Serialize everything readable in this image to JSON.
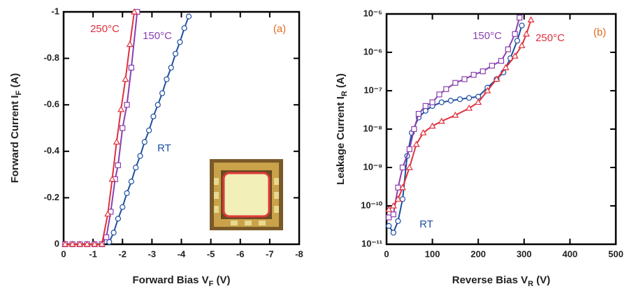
{
  "chart_data": [
    {
      "type": "line",
      "xlabel": [
        "Forward Bias V",
        "F",
        " (V)"
      ],
      "ylabel": [
        "Forward Current I",
        "F",
        " (A)"
      ],
      "xlim": [
        0,
        -8
      ],
      "xticks": [
        0,
        -1,
        -2,
        -3,
        -4,
        -5,
        -6,
        -7,
        -8
      ],
      "ylim": [
        0,
        -1
      ],
      "yticks": [
        0,
        -0.2,
        -0.4,
        -0.6,
        -0.8,
        -1
      ],
      "annotations": [
        {
          "text": "250°C",
          "color": "#e0303c"
        },
        {
          "text": "150°C",
          "color": "#8a3fb0"
        },
        {
          "text": "RT",
          "color": "#1f4fa0"
        },
        {
          "text": "(a)",
          "color": "#e06a20"
        }
      ],
      "series": [
        {
          "name": "RT",
          "color": "#1f4fa0",
          "marker": "circle",
          "x": [
            -1.55,
            -1.7,
            -1.85,
            -2.0,
            -2.15,
            -2.3,
            -2.45,
            -2.6,
            -2.75,
            -2.9,
            -3.05,
            -3.2,
            -3.35,
            -3.5,
            -3.65,
            -3.8,
            -3.95,
            -4.1,
            -4.25
          ],
          "values": [
            -0.01,
            -0.05,
            -0.11,
            -0.16,
            -0.22,
            -0.27,
            -0.33,
            -0.38,
            -0.44,
            -0.49,
            -0.55,
            -0.6,
            -0.65,
            -0.71,
            -0.76,
            -0.82,
            -0.87,
            -0.93,
            -0.98
          ]
        },
        {
          "name": "150°C",
          "color": "#8a3fb0",
          "marker": "square",
          "x": [
            -0.05,
            -0.3,
            -0.55,
            -0.8,
            -1.05,
            -1.3,
            -1.45,
            -1.6,
            -1.75,
            -1.85,
            -2.0,
            -2.15,
            -2.3,
            -2.5
          ],
          "values": [
            0,
            0,
            0,
            0,
            0,
            0,
            -0.03,
            -0.14,
            -0.28,
            -0.34,
            -0.5,
            -0.6,
            -0.76,
            -1.0
          ]
        },
        {
          "name": "250°C",
          "color": "#e0303c",
          "marker": "triangle",
          "x": [
            -0.05,
            -0.3,
            -0.55,
            -0.8,
            -1.05,
            -1.3,
            -1.5,
            -1.65,
            -1.8,
            -1.95,
            -2.1,
            -2.25,
            -2.4
          ],
          "values": [
            0,
            0,
            0,
            0,
            0,
            0,
            -0.13,
            -0.28,
            -0.44,
            -0.58,
            -0.71,
            -0.86,
            -1.0
          ]
        }
      ]
    },
    {
      "type": "line",
      "log_y": true,
      "xlabel": [
        "Reverse Bias V",
        "R",
        " (V)"
      ],
      "ylabel": [
        "Leakage Current I",
        "R",
        " (A)"
      ],
      "xlim": [
        0,
        500
      ],
      "xticks": [
        0,
        100,
        200,
        300,
        400,
        500
      ],
      "ylim": [
        1e-11,
        1e-05
      ],
      "yticks": [
        {
          "value": 1e-11,
          "label": "10⁻¹¹"
        },
        {
          "value": 1e-10,
          "label": "10⁻¹⁰"
        },
        {
          "value": 1e-09,
          "label": "10⁻⁹"
        },
        {
          "value": 1e-08,
          "label": "10⁻⁸"
        },
        {
          "value": 1e-07,
          "label": "10⁻⁷"
        },
        {
          "value": 1e-06,
          "label": "10⁻⁶"
        },
        {
          "value": 1e-05,
          "label": "10⁻⁵"
        }
      ],
      "annotations": [
        {
          "text": "150°C",
          "color": "#8a3fb0"
        },
        {
          "text": "250°C",
          "color": "#e0303c"
        },
        {
          "text": "RT",
          "color": "#1f4fa0"
        },
        {
          "text": "(b)",
          "color": "#e06a20"
        }
      ],
      "series": [
        {
          "name": "RT",
          "color": "#1f4fa0",
          "marker": "circle",
          "x": [
            5,
            15,
            25,
            35,
            45,
            55,
            70,
            85,
            100,
            120,
            140,
            160,
            180,
            200,
            220,
            240,
            255,
            270,
            285,
            295
          ],
          "values": [
            3e-11,
            2e-11,
            4e-11,
            1.5e-10,
            2e-09,
            8e-09,
            2e-08,
            3e-08,
            4e-08,
            5e-08,
            5.5e-08,
            6e-08,
            6.5e-08,
            7e-08,
            1.2e-07,
            2e-07,
            3e-07,
            7e-07,
            2e-06,
            5e-06
          ]
        },
        {
          "name": "150°C",
          "color": "#8a3fb0",
          "marker": "square",
          "x": [
            5,
            15,
            25,
            35,
            50,
            60,
            70,
            85,
            100,
            115,
            130,
            150,
            170,
            190,
            210,
            230,
            250,
            265,
            280,
            290
          ],
          "values": [
            5e-11,
            6e-11,
            3e-10,
            1e-09,
            3e-09,
            1e-08,
            2.5e-08,
            4e-08,
            5e-08,
            8e-08,
            1.1e-07,
            1.6e-07,
            2e-07,
            2.6e-07,
            3.2e-07,
            4.5e-07,
            6e-07,
            1.2e-06,
            3e-06,
            8e-06
          ]
        },
        {
          "name": "250°C",
          "color": "#e0303c",
          "marker": "triangle",
          "x": [
            5,
            15,
            25,
            35,
            50,
            65,
            80,
            100,
            120,
            150,
            180,
            200,
            220,
            240,
            260,
            280,
            295,
            305,
            315
          ],
          "values": [
            8e-11,
            1e-10,
            1.5e-10,
            3e-10,
            1e-09,
            4e-09,
            8e-09,
            1.2e-08,
            1.6e-08,
            2.3e-08,
            3.5e-08,
            5e-08,
            1e-07,
            2e-07,
            4e-07,
            8e-07,
            1.5e-06,
            3e-06,
            7e-06
          ]
        }
      ]
    }
  ]
}
